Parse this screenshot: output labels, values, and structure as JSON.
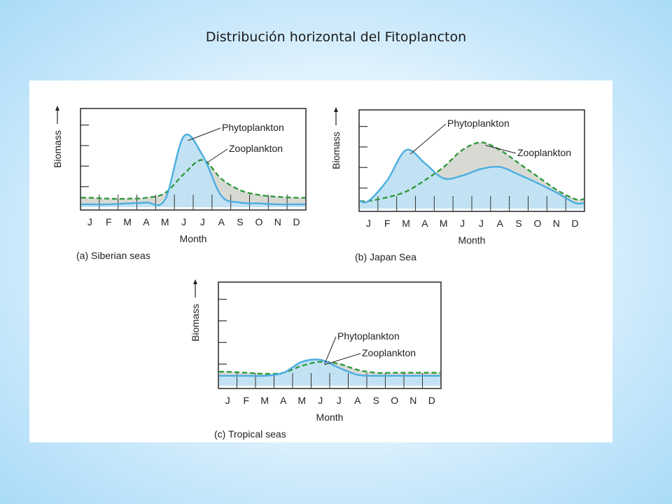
{
  "slide": {
    "title": "Distribución horizontal del Fitoplancton"
  },
  "colors": {
    "phyto_line": "#4aaee0",
    "phyto_fill": "#c9e6f6",
    "zoo_line": "#2f9a3e",
    "zoo_fill": "#d9d9d4",
    "frame": "#333333"
  },
  "chart_data": [
    {
      "type": "line",
      "caption": "(a) Siberian seas",
      "xlabel": "Month",
      "ylabel": "Biomass",
      "categories": [
        "J",
        "F",
        "M",
        "A",
        "M",
        "J",
        "J",
        "A",
        "S",
        "O",
        "N",
        "D"
      ],
      "ylim": [
        0,
        100
      ],
      "series": [
        {
          "name": "Phytoplankton",
          "values": [
            3,
            3,
            4,
            5,
            8,
            75,
            55,
            12,
            5,
            4,
            3,
            3
          ]
        },
        {
          "name": "Zooplankton",
          "values": [
            10,
            9,
            9,
            10,
            15,
            35,
            50,
            30,
            18,
            13,
            11,
            10
          ]
        }
      ]
    },
    {
      "type": "line",
      "caption": "(b) Japan Sea",
      "xlabel": "Month",
      "ylabel": "Biomass",
      "categories": [
        "J",
        "F",
        "M",
        "A",
        "M",
        "J",
        "J",
        "A",
        "S",
        "O",
        "N",
        "D"
      ],
      "ylim": [
        0,
        100
      ],
      "series": [
        {
          "name": "Phytoplankton",
          "values": [
            8,
            30,
            62,
            48,
            32,
            35,
            42,
            44,
            36,
            27,
            17,
            6
          ]
        },
        {
          "name": "Zooplankton",
          "values": [
            8,
            12,
            18,
            30,
            44,
            62,
            70,
            62,
            48,
            34,
            20,
            10
          ]
        }
      ]
    },
    {
      "type": "line",
      "caption": "(c) Tropical seas",
      "xlabel": "Month",
      "ylabel": "Biomass",
      "categories": [
        "J",
        "F",
        "M",
        "A",
        "M",
        "J",
        "J",
        "A",
        "S",
        "O",
        "N",
        "D"
      ],
      "ylim": [
        0,
        100
      ],
      "series": [
        {
          "name": "Phytoplankton",
          "values": [
            10,
            10,
            10,
            13,
            24,
            26,
            18,
            11,
            10,
            10,
            10,
            10
          ]
        },
        {
          "name": "Zooplankton",
          "values": [
            14,
            13,
            12,
            13,
            20,
            24,
            22,
            16,
            13,
            13,
            13,
            13
          ]
        }
      ]
    }
  ]
}
